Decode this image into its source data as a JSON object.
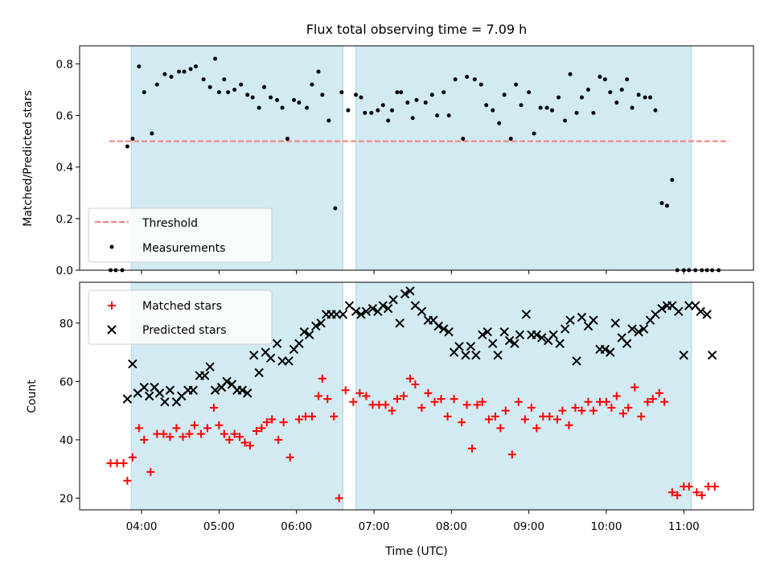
{
  "chart_data": {
    "title": "Flux total observing time = 7.09 h",
    "xlabel": "Time (UTC)",
    "x_ticks": [
      "04:00",
      "05:00",
      "06:00",
      "07:00",
      "08:00",
      "09:00",
      "10:00",
      "11:00"
    ],
    "x_range": [
      "03:12",
      "11:54"
    ],
    "shaded_intervals": [
      [
        "03:52",
        "06:36"
      ],
      [
        "06:46",
        "11:06"
      ]
    ],
    "colors": {
      "shade": "#add8e6",
      "matched": "#ff0000",
      "predicted": "#000000",
      "threshold": "#f08080"
    },
    "panels": [
      {
        "type": "scatter",
        "ylabel": "Matched/Predicted stars",
        "ylim": [
          0,
          0.87
        ],
        "y_ticks": [
          "0.0",
          "0.2",
          "0.4",
          "0.6",
          "0.8"
        ],
        "grid": false,
        "legend_position": "lower-left",
        "threshold": {
          "name": "Threshold",
          "value": 0.5,
          "x_start": "03:35",
          "x_end": "11:35"
        },
        "series": [
          {
            "name": "Measurements",
            "x": [
              "03:36",
              "03:40",
              "03:45",
              "03:49",
              "03:53",
              "03:58",
              "04:02",
              "04:08",
              "04:12",
              "04:18",
              "04:23",
              "04:29",
              "04:33",
              "04:38",
              "04:42",
              "04:48",
              "04:53",
              "04:57",
              "05:00",
              "05:04",
              "05:07",
              "05:12",
              "05:17",
              "05:22",
              "05:26",
              "05:31",
              "05:35",
              "05:40",
              "05:45",
              "05:49",
              "05:53",
              "05:58",
              "06:02",
              "06:08",
              "06:12",
              "06:17",
              "06:20",
              "06:25",
              "06:30",
              "06:35",
              "06:40",
              "06:46",
              "06:50",
              "06:53",
              "06:58",
              "07:03",
              "07:07",
              "07:11",
              "07:14",
              "07:18",
              "07:21",
              "07:26",
              "07:30",
              "07:33",
              "07:40",
              "07:45",
              "07:49",
              "07:54",
              "07:58",
              "08:03",
              "08:09",
              "08:12",
              "08:18",
              "08:23",
              "08:27",
              "08:32",
              "08:37",
              "08:41",
              "08:46",
              "08:50",
              "08:54",
              "09:00",
              "09:04",
              "09:09",
              "09:14",
              "09:18",
              "09:23",
              "09:28",
              "09:32",
              "09:37",
              "09:41",
              "09:46",
              "09:50",
              "09:55",
              "09:59",
              "10:03",
              "10:08",
              "10:12",
              "10:16",
              "10:20",
              "10:25",
              "10:30",
              "10:34",
              "10:38",
              "10:43",
              "10:47",
              "10:51",
              "10:55",
              "11:00",
              "11:04",
              "11:09",
              "11:14",
              "11:18",
              "11:22",
              "11:27"
            ],
            "y": [
              0.0,
              0.0,
              0.0,
              0.48,
              0.51,
              0.79,
              0.69,
              0.53,
              0.72,
              0.76,
              0.75,
              0.77,
              0.77,
              0.78,
              0.79,
              0.74,
              0.71,
              0.82,
              0.69,
              0.74,
              0.69,
              0.7,
              0.72,
              0.68,
              0.67,
              0.63,
              0.71,
              0.67,
              0.66,
              0.63,
              0.51,
              0.66,
              0.65,
              0.63,
              0.72,
              0.77,
              0.68,
              0.58,
              0.24,
              0.69,
              0.62,
              0.68,
              0.67,
              0.61,
              0.61,
              0.62,
              0.64,
              0.58,
              0.62,
              0.69,
              0.69,
              0.65,
              0.59,
              0.66,
              0.65,
              0.68,
              0.6,
              0.69,
              0.6,
              0.74,
              0.51,
              0.75,
              0.74,
              0.72,
              0.64,
              0.62,
              0.57,
              0.68,
              0.51,
              0.72,
              0.64,
              0.69,
              0.53,
              0.63,
              0.63,
              0.62,
              0.67,
              0.58,
              0.76,
              0.61,
              0.67,
              0.7,
              0.61,
              0.75,
              0.74,
              0.69,
              0.65,
              0.7,
              0.74,
              0.63,
              0.68,
              0.67,
              0.67,
              0.62,
              0.26,
              0.25,
              0.35,
              0.0,
              0.0,
              0.0,
              0.0,
              0.0,
              0.0,
              0.0,
              0.0
            ]
          }
        ]
      },
      {
        "type": "scatter",
        "ylabel": "Count",
        "ylim": [
          16,
          94
        ],
        "y_ticks": [
          "20",
          "40",
          "60",
          "80"
        ],
        "grid": false,
        "legend_position": "upper-left",
        "series": [
          {
            "name": "Matched stars",
            "marker": "+",
            "x": [
              "03:36",
              "03:41",
              "03:46",
              "03:49",
              "03:53",
              "03:58",
              "04:02",
              "04:07",
              "04:12",
              "04:17",
              "04:22",
              "04:27",
              "04:32",
              "04:37",
              "04:41",
              "04:46",
              "04:51",
              "04:56",
              "05:00",
              "05:04",
              "05:08",
              "05:12",
              "05:16",
              "05:20",
              "05:24",
              "05:29",
              "05:33",
              "05:37",
              "05:41",
              "05:46",
              "05:50",
              "05:55",
              "06:02",
              "06:07",
              "06:12",
              "06:17",
              "06:20",
              "06:24",
              "06:29",
              "06:33",
              "06:38",
              "06:44",
              "06:49",
              "06:54",
              "06:59",
              "07:04",
              "07:09",
              "07:14",
              "07:18",
              "07:23",
              "07:28",
              "07:32",
              "07:37",
              "07:42",
              "07:47",
              "07:52",
              "07:57",
              "08:02",
              "08:08",
              "08:12",
              "08:16",
              "08:20",
              "08:24",
              "08:29",
              "08:34",
              "08:38",
              "08:42",
              "08:47",
              "08:52",
              "08:57",
              "09:02",
              "09:06",
              "09:11",
              "09:16",
              "09:22",
              "09:26",
              "09:31",
              "09:36",
              "09:41",
              "09:46",
              "09:50",
              "09:55",
              "10:00",
              "10:04",
              "10:08",
              "10:13",
              "10:17",
              "10:22",
              "10:27",
              "10:32",
              "10:36",
              "10:41",
              "10:45",
              "10:51",
              "10:55",
              "11:00",
              "11:04",
              "11:10",
              "11:14",
              "11:19",
              "11:24"
            ],
            "y": [
              32,
              32,
              32,
              26,
              34,
              44,
              40,
              29,
              42,
              42,
              41,
              44,
              41,
              42,
              45,
              42,
              44,
              51,
              45,
              42,
              40,
              42,
              41,
              39,
              38,
              43,
              44,
              46,
              47,
              40,
              46,
              34,
              47,
              48,
              48,
              55,
              61,
              54,
              48,
              20,
              57,
              53,
              56,
              55,
              52,
              52,
              52,
              50,
              54,
              55,
              61,
              59,
              51,
              56,
              53,
              54,
              48,
              54,
              46,
              52,
              37,
              52,
              53,
              47,
              48,
              44,
              50,
              35,
              53,
              47,
              51,
              44,
              48,
              48,
              47,
              50,
              45,
              51,
              50,
              53,
              50,
              53,
              53,
              51,
              55,
              49,
              51,
              58,
              48,
              53,
              54,
              56,
              53,
              22,
              21,
              24,
              24,
              22,
              21,
              24,
              24
            ]
          },
          {
            "name": "Predicted stars",
            "marker": "x",
            "x": [
              "03:49",
              "03:53",
              "03:57",
              "04:02",
              "04:06",
              "04:10",
              "04:14",
              "04:18",
              "04:22",
              "04:27",
              "04:31",
              "04:36",
              "04:40",
              "04:45",
              "04:49",
              "04:53",
              "04:57",
              "05:02",
              "05:06",
              "05:10",
              "05:14",
              "05:18",
              "05:22",
              "05:27",
              "05:31",
              "05:36",
              "05:40",
              "05:45",
              "05:49",
              "05:54",
              "05:58",
              "06:02",
              "06:06",
              "06:10",
              "06:15",
              "06:19",
              "06:23",
              "06:27",
              "06:31",
              "06:36",
              "06:41",
              "06:46",
              "06:50",
              "06:54",
              "06:59",
              "07:03",
              "07:07",
              "07:11",
              "07:15",
              "07:20",
              "07:24",
              "07:28",
              "07:32",
              "07:37",
              "07:42",
              "07:46",
              "07:50",
              "07:54",
              "07:58",
              "08:02",
              "08:06",
              "08:11",
              "08:15",
              "08:19",
              "08:24",
              "08:28",
              "08:32",
              "08:36",
              "08:41",
              "08:45",
              "08:49",
              "08:53",
              "08:58",
              "09:02",
              "09:06",
              "09:10",
              "09:15",
              "09:19",
              "09:24",
              "09:28",
              "09:32",
              "09:37",
              "09:41",
              "09:46",
              "09:50",
              "09:55",
              "09:59",
              "10:03",
              "10:07",
              "10:12",
              "10:16",
              "10:20",
              "10:25",
              "10:29",
              "10:34",
              "10:38",
              "10:43",
              "10:47",
              "10:51",
              "10:56",
              "11:00",
              "11:04",
              "11:09",
              "11:13",
              "11:18",
              "11:22"
            ],
            "y": [
              54,
              66,
              56,
              58,
              55,
              58,
              56,
              53,
              57,
              53,
              55,
              57,
              57,
              62,
              62,
              65,
              57,
              58,
              60,
              59,
              57,
              57,
              56,
              69,
              63,
              70,
              68,
              73,
              67,
              67,
              71,
              73,
              77,
              76,
              79,
              80,
              83,
              83,
              83,
              83,
              86,
              84,
              83,
              84,
              85,
              84,
              86,
              85,
              88,
              80,
              90,
              91,
              86,
              84,
              81,
              81,
              79,
              78,
              77,
              70,
              72,
              69,
              72,
              69,
              76,
              77,
              73,
              69,
              77,
              74,
              73,
              76,
              83,
              76,
              76,
              75,
              74,
              76,
              73,
              78,
              81,
              67,
              82,
              79,
              81,
              71,
              71,
              70,
              80,
              75,
              73,
              78,
              77,
              78,
              81,
              83,
              85,
              86,
              86,
              84,
              69,
              86,
              86,
              84,
              83,
              69
            ]
          }
        ]
      }
    ]
  }
}
